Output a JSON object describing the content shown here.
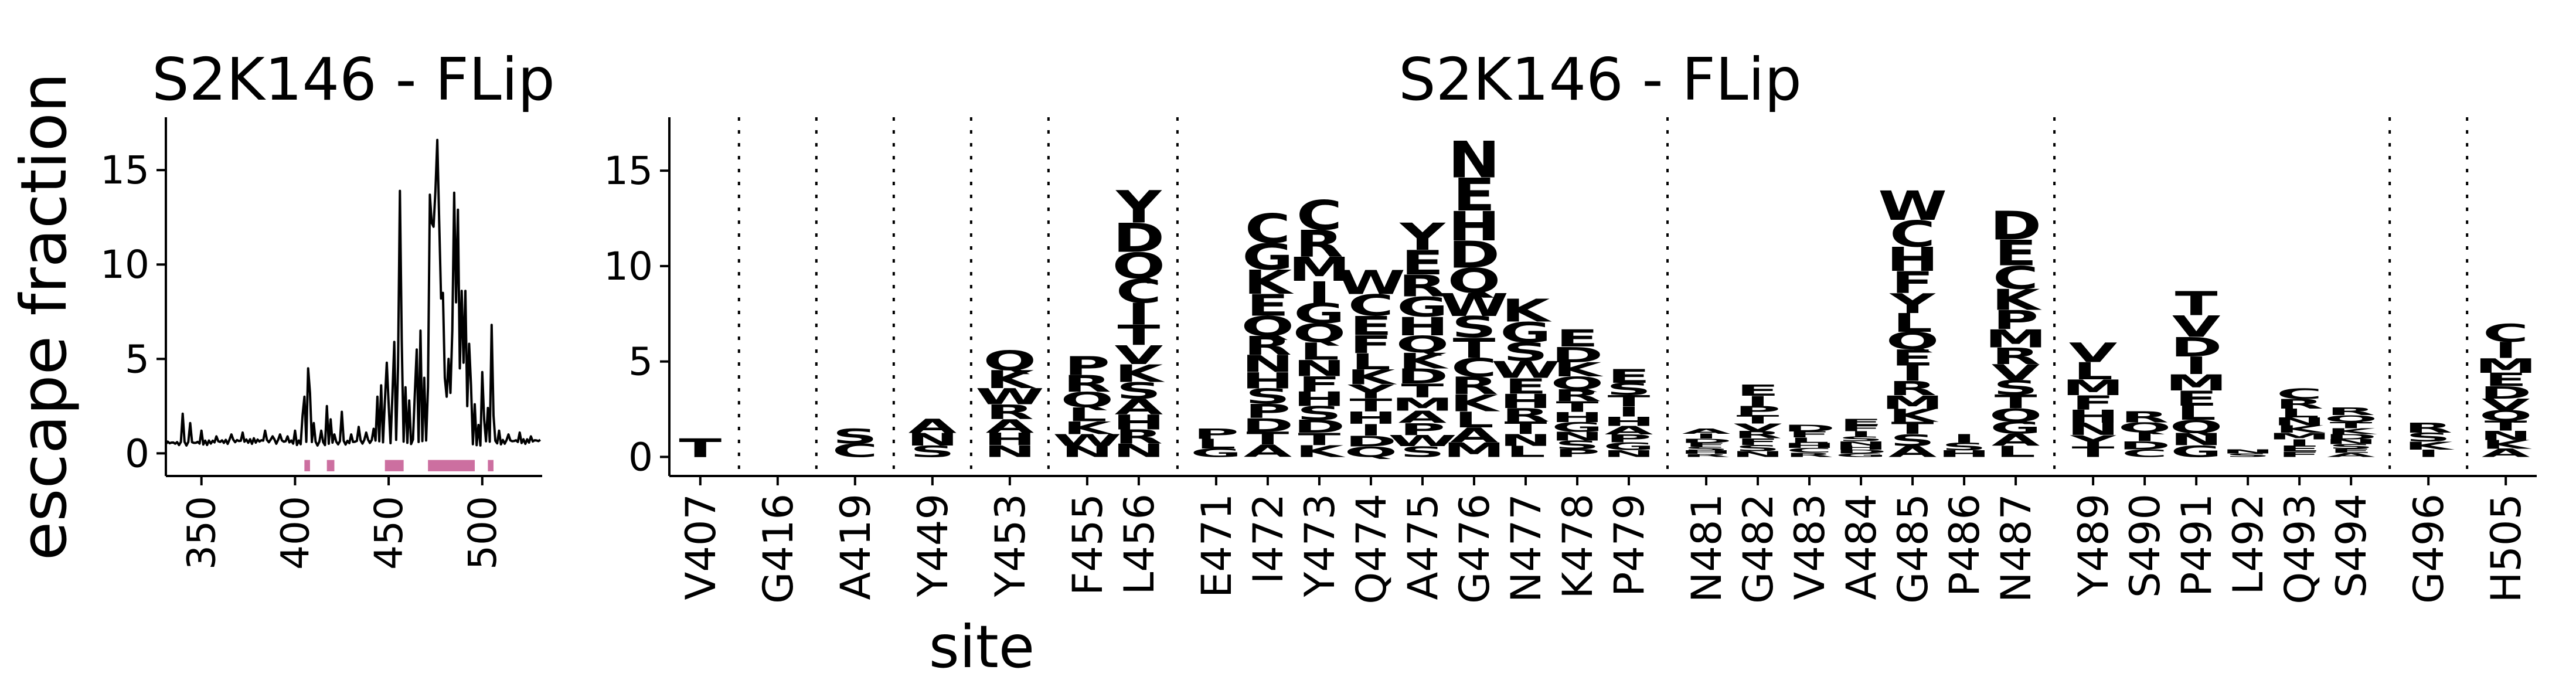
{
  "figure": {
    "y_axis_label": "escape fraction",
    "x_axis_label": "site"
  },
  "chart_data": [
    {
      "type": "line",
      "title": "S2K146 - FLip",
      "ylabel": "escape fraction",
      "xlim": [
        331,
        532
      ],
      "ylim": [
        -1.2,
        17.8
      ],
      "xticks": [
        350,
        400,
        450,
        500
      ],
      "yticks": [
        0,
        5,
        10,
        15
      ],
      "line_color": "#000000",
      "highlight_color": "#cc6fa0",
      "site_range": [
        331,
        531
      ],
      "peaks": [
        [
          340,
          2.1
        ],
        [
          344,
          1.6
        ],
        [
          350,
          1.2
        ],
        [
          358,
          0.9
        ],
        [
          366,
          1.0
        ],
        [
          372,
          1.1
        ],
        [
          378,
          0.8
        ],
        [
          384,
          1.2
        ],
        [
          388,
          0.9
        ],
        [
          392,
          1.0
        ],
        [
          396,
          0.9
        ],
        [
          400,
          1.2
        ],
        [
          404,
          2.0
        ],
        [
          405,
          3.0
        ],
        [
          407,
          4.5
        ],
        [
          408,
          3.2
        ],
        [
          410,
          1.6
        ],
        [
          414,
          1.2
        ],
        [
          417,
          2.5
        ],
        [
          419,
          1.8
        ],
        [
          421,
          1.0
        ],
        [
          425,
          2.2
        ],
        [
          430,
          1.0
        ],
        [
          434,
          1.4
        ],
        [
          438,
          1.1
        ],
        [
          442,
          1.3
        ],
        [
          444,
          3.0
        ],
        [
          446,
          3.6
        ],
        [
          448,
          2.8
        ],
        [
          449,
          4.8
        ],
        [
          450,
          2.6
        ],
        [
          452,
          3.1
        ],
        [
          453,
          5.9
        ],
        [
          455,
          4.6
        ],
        [
          456,
          13.9
        ],
        [
          457,
          6.0
        ],
        [
          459,
          3.5
        ],
        [
          461,
          2.8
        ],
        [
          464,
          3.2
        ],
        [
          465,
          5.5
        ],
        [
          467,
          6.5
        ],
        [
          469,
          4.0
        ],
        [
          471,
          3.5
        ],
        [
          472,
          13.7
        ],
        [
          473,
          12.2
        ],
        [
          474,
          12.0
        ],
        [
          475,
          13.9
        ],
        [
          476,
          16.6
        ],
        [
          477,
          12.3
        ],
        [
          478,
          8.2
        ],
        [
          479,
          8.5
        ],
        [
          480,
          4.0
        ],
        [
          481,
          3.0
        ],
        [
          482,
          5.0
        ],
        [
          483,
          3.2
        ],
        [
          484,
          6.5
        ],
        [
          485,
          13.8
        ],
        [
          486,
          8.0
        ],
        [
          487,
          12.9
        ],
        [
          488,
          4.5
        ],
        [
          489,
          8.6
        ],
        [
          490,
          4.8
        ],
        [
          491,
          8.6
        ],
        [
          492,
          2.5
        ],
        [
          493,
          5.8
        ],
        [
          494,
          3.6
        ],
        [
          496,
          2.6
        ],
        [
          498,
          1.5
        ],
        [
          500,
          4.3
        ],
        [
          501,
          1.8
        ],
        [
          503,
          2.4
        ],
        [
          505,
          6.8
        ],
        [
          506,
          2.0
        ],
        [
          509,
          1.2
        ],
        [
          514,
          1.0
        ],
        [
          520,
          1.1
        ],
        [
          526,
          0.9
        ]
      ],
      "highlight_segments": [
        [
          405,
          408
        ],
        [
          417,
          421
        ],
        [
          448,
          458
        ],
        [
          471,
          496
        ],
        [
          503,
          506
        ]
      ]
    },
    {
      "type": "logo",
      "title": "S2K146 - FLip",
      "ylabel": "escape fraction",
      "xlabel": "site",
      "ylim": [
        -1.0,
        17.8
      ],
      "yticks": [
        0,
        5,
        10,
        15
      ],
      "sites": [
        "V407",
        "G416",
        "A419",
        "Y449",
        "Y453",
        "F455",
        "L456",
        "E471",
        "I472",
        "Y473",
        "Q474",
        "A475",
        "G476",
        "N477",
        "K478",
        "P479",
        "N481",
        "G482",
        "V483",
        "A484",
        "G485",
        "P486",
        "N487",
        "Y489",
        "S490",
        "P491",
        "L492",
        "Q493",
        "S494",
        "G496",
        "H505"
      ],
      "site_totals": [
        1.0,
        0.0,
        1.5,
        2.0,
        5.6,
        5.3,
        14.0,
        1.5,
        12.8,
        13.5,
        9.8,
        12.3,
        16.6,
        8.3,
        6.7,
        4.6,
        1.5,
        3.8,
        1.7,
        2.0,
        14.0,
        1.2,
        12.9,
        6.0,
        2.4,
        8.7,
        0.4,
        3.6,
        2.6,
        1.8,
        7.0
      ],
      "site_letters": [
        "T",
        "",
        "SC",
        "ANS",
        "QKWRAHN",
        "PRQLKWN",
        "YDQCITVKSAHRN",
        "PLG",
        "CGKEQRNHSPDTA",
        "CRMIGQLNFHSDTK",
        "WCEFLKYTHIDQ",
        "YERGHQKDTMAPWS",
        "NEHDQWSTCRKLAM",
        "KGSWEHRTNL",
        "EDKQRTHGNSP",
        "ESTIHAPGN",
        "AIDFSHR",
        "EIPTVRFSN",
        "DFLHCR",
        "EFISNHDG",
        "WCHFYLQEIRMKTSA",
        "ISH",
        "DECKPMRVSTQGAL",
        "VLMFHNYT",
        "RQIDC",
        "TVDIMELQNG",
        "NS",
        "CRLNKMIEF",
        "RQTKDNSEA",
        "RSKI",
        "CIMEDVQTNKA"
      ],
      "separators_after": [
        "V407",
        "G416",
        "A419",
        "Y449",
        "Y453",
        "L456",
        "P479",
        "N487",
        "S494",
        "G496"
      ],
      "palette": [
        "#7a2a00",
        "#a84a0f",
        "#c9630f",
        "#e68522",
        "#f4a23a",
        "#f8c36a",
        "#fbde9c",
        "#fdeec6"
      ]
    }
  ]
}
